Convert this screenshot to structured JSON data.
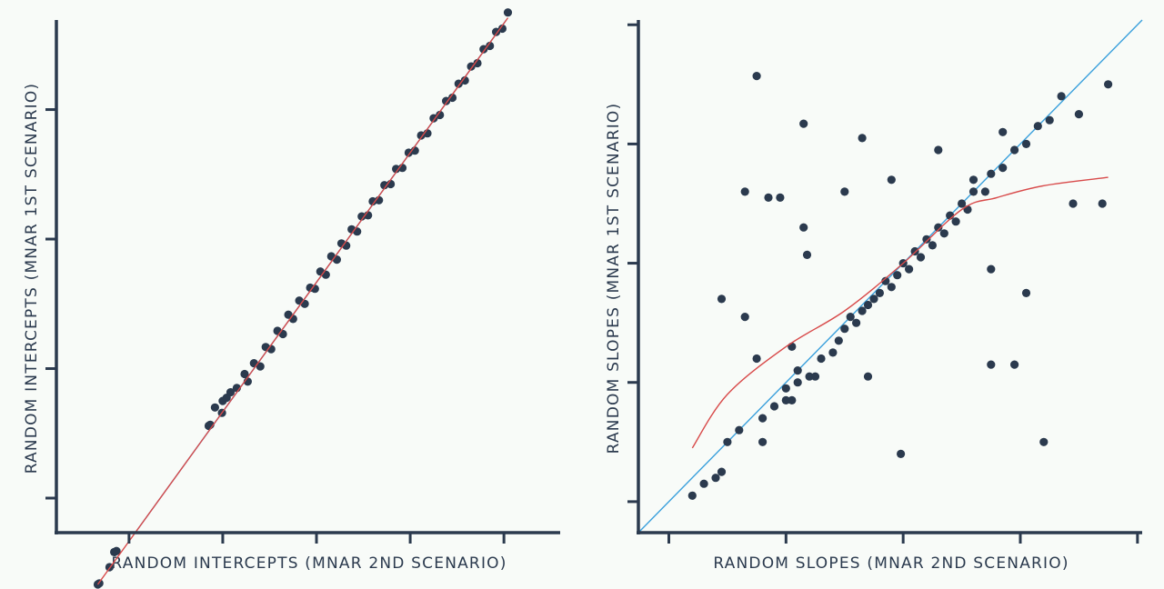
{
  "colors": {
    "background": "#f8fbf8",
    "axis": "#2b3a4e",
    "points": "#2b3a4e",
    "identity_line": "#3aa0dc",
    "smooth_line": "#d84a4a"
  },
  "chart_data": [
    {
      "type": "scatter",
      "title": "",
      "xlabel": "RANDOM INTERCEPTS (MNAR 2ND SCENARIO)",
      "ylabel": "RANDOM INTERCEPTS (MNAR 1ST SCENARIO)",
      "xlim": [
        -3.73,
        2.72
      ],
      "ylim": [
        -2.72,
        2.03
      ],
      "xticks": [
        -2.8,
        -1.6,
        -0.4,
        0.8,
        2.0
      ],
      "yticks": [
        -2.4,
        -1.2,
        0.0,
        1.2,
        2.4
      ],
      "tick_labels_shown": false,
      "grid": false,
      "reference_line": "y = x",
      "smooth_line": [
        [
          -3.2,
          -3.2
        ],
        [
          -1.2,
          -1.2
        ],
        [
          0.8,
          0.8
        ],
        [
          2.05,
          2.05
        ]
      ],
      "points": [
        [
          -3.2,
          -3.2
        ],
        [
          -3.18,
          -3.19
        ],
        [
          -3.05,
          -3.04
        ],
        [
          -2.99,
          -2.9
        ],
        [
          -2.96,
          -2.89
        ],
        [
          -1.78,
          -1.73
        ],
        [
          -1.76,
          -1.72
        ],
        [
          -1.7,
          -1.56
        ],
        [
          -1.61,
          -1.61
        ],
        [
          -1.6,
          -1.5
        ],
        [
          -1.55,
          -1.47
        ],
        [
          -1.5,
          -1.42
        ],
        [
          -1.42,
          -1.38
        ],
        [
          -1.32,
          -1.25
        ],
        [
          -1.28,
          -1.32
        ],
        [
          -1.2,
          -1.15
        ],
        [
          -1.12,
          -1.18
        ],
        [
          -1.05,
          -1.0
        ],
        [
          -0.98,
          -1.02
        ],
        [
          -0.9,
          -0.85
        ],
        [
          -0.83,
          -0.88
        ],
        [
          -0.76,
          -0.7
        ],
        [
          -0.7,
          -0.74
        ],
        [
          -0.62,
          -0.57
        ],
        [
          -0.55,
          -0.6
        ],
        [
          -0.48,
          -0.45
        ],
        [
          -0.42,
          -0.46
        ],
        [
          -0.35,
          -0.3
        ],
        [
          -0.28,
          -0.33
        ],
        [
          -0.21,
          -0.16
        ],
        [
          -0.14,
          -0.19
        ],
        [
          -0.08,
          -0.04
        ],
        [
          -0.02,
          -0.06
        ],
        [
          0.05,
          0.09
        ],
        [
          0.12,
          0.07
        ],
        [
          0.18,
          0.21
        ],
        [
          0.26,
          0.22
        ],
        [
          0.32,
          0.35
        ],
        [
          0.4,
          0.36
        ],
        [
          0.47,
          0.5
        ],
        [
          0.55,
          0.51
        ],
        [
          0.62,
          0.65
        ],
        [
          0.7,
          0.66
        ],
        [
          0.78,
          0.8
        ],
        [
          0.86,
          0.82
        ],
        [
          0.94,
          0.96
        ],
        [
          1.02,
          0.98
        ],
        [
          1.1,
          1.12
        ],
        [
          1.18,
          1.15
        ],
        [
          1.26,
          1.28
        ],
        [
          1.34,
          1.31
        ],
        [
          1.42,
          1.44
        ],
        [
          1.5,
          1.47
        ],
        [
          1.58,
          1.6
        ],
        [
          1.66,
          1.63
        ],
        [
          1.74,
          1.76
        ],
        [
          1.82,
          1.79
        ],
        [
          1.9,
          1.92
        ],
        [
          1.98,
          1.95
        ],
        [
          2.05,
          2.1
        ]
      ]
    },
    {
      "type": "scatter",
      "title": "",
      "xlabel": "RANDOM SLOPES (MNAR 2ND SCENARIO)",
      "ylabel": "RANDOM SLOPES (MNAR 1ST SCENARIO)",
      "xlim": [
        -2.26,
        2.04
      ],
      "ylim": [
        -2.26,
        2.04
      ],
      "xticks": [
        -2.0,
        -1.0,
        0.0,
        1.0,
        2.0
      ],
      "yticks": [
        -2.0,
        -1.0,
        0.0,
        1.0,
        2.0
      ],
      "tick_labels_shown": false,
      "grid": false,
      "reference_line": "y = x",
      "smooth_line": [
        [
          -1.8,
          -1.55
        ],
        [
          -1.5,
          -1.1
        ],
        [
          -1.0,
          -0.7
        ],
        [
          -0.5,
          -0.4
        ],
        [
          0.0,
          0.0
        ],
        [
          0.5,
          0.45
        ],
        [
          0.8,
          0.55
        ],
        [
          1.2,
          0.65
        ],
        [
          1.75,
          0.72
        ]
      ],
      "points": [
        [
          -1.8,
          -1.95
        ],
        [
          -1.7,
          -1.85
        ],
        [
          -1.6,
          -1.8
        ],
        [
          -1.55,
          -1.75
        ],
        [
          -1.5,
          -1.5
        ],
        [
          -1.4,
          -1.4
        ],
        [
          -1.2,
          -1.5
        ],
        [
          -1.2,
          -1.3
        ],
        [
          -1.1,
          -1.2
        ],
        [
          -1.0,
          -1.15
        ],
        [
          -1.0,
          -1.05
        ],
        [
          -0.95,
          -1.15
        ],
        [
          -0.9,
          -1.0
        ],
        [
          -0.9,
          -0.9
        ],
        [
          -0.8,
          -0.95
        ],
        [
          -0.75,
          -0.95
        ],
        [
          -0.7,
          -0.8
        ],
        [
          -0.6,
          -0.75
        ],
        [
          -0.55,
          -0.65
        ],
        [
          -0.5,
          -0.55
        ],
        [
          -0.45,
          -0.45
        ],
        [
          -0.4,
          -0.5
        ],
        [
          -0.35,
          -0.4
        ],
        [
          -0.3,
          -0.35
        ],
        [
          -0.25,
          -0.3
        ],
        [
          -0.2,
          -0.25
        ],
        [
          -0.15,
          -0.15
        ],
        [
          -0.1,
          -0.2
        ],
        [
          -0.05,
          -0.1
        ],
        [
          0.0,
          0.0
        ],
        [
          0.05,
          -0.05
        ],
        [
          0.1,
          0.1
        ],
        [
          0.15,
          0.05
        ],
        [
          0.2,
          0.2
        ],
        [
          0.25,
          0.15
        ],
        [
          0.3,
          0.3
        ],
        [
          0.35,
          0.25
        ],
        [
          0.4,
          0.4
        ],
        [
          0.45,
          0.35
        ],
        [
          0.5,
          0.5
        ],
        [
          0.55,
          0.45
        ],
        [
          0.6,
          0.6
        ],
        [
          0.7,
          0.6
        ],
        [
          0.75,
          0.75
        ],
        [
          0.85,
          0.8
        ],
        [
          0.95,
          0.95
        ],
        [
          1.05,
          1.0
        ],
        [
          1.15,
          1.15
        ],
        [
          1.25,
          1.2
        ],
        [
          1.35,
          1.4
        ],
        [
          -1.25,
          1.57
        ],
        [
          -0.85,
          1.17
        ],
        [
          -1.35,
          0.6
        ],
        [
          -1.15,
          0.55
        ],
        [
          -1.05,
          0.55
        ],
        [
          -0.85,
          0.3
        ],
        [
          -0.82,
          0.07
        ],
        [
          -0.5,
          0.6
        ],
        [
          -0.35,
          1.05
        ],
        [
          -0.1,
          0.7
        ],
        [
          0.3,
          0.95
        ],
        [
          0.6,
          0.7
        ],
        [
          0.85,
          1.1
        ],
        [
          1.5,
          1.25
        ],
        [
          1.45,
          0.5
        ],
        [
          -1.55,
          -0.3
        ],
        [
          -1.35,
          -0.45
        ],
        [
          -1.25,
          -0.8
        ],
        [
          -0.95,
          -0.7
        ],
        [
          -0.3,
          -0.95
        ],
        [
          -0.02,
          -1.6
        ],
        [
          0.75,
          -0.05
        ],
        [
          0.75,
          -0.85
        ],
        [
          0.95,
          -0.85
        ],
        [
          1.05,
          -0.25
        ],
        [
          1.2,
          -1.5
        ],
        [
          1.7,
          0.5
        ],
        [
          1.75,
          1.5
        ]
      ]
    }
  ]
}
